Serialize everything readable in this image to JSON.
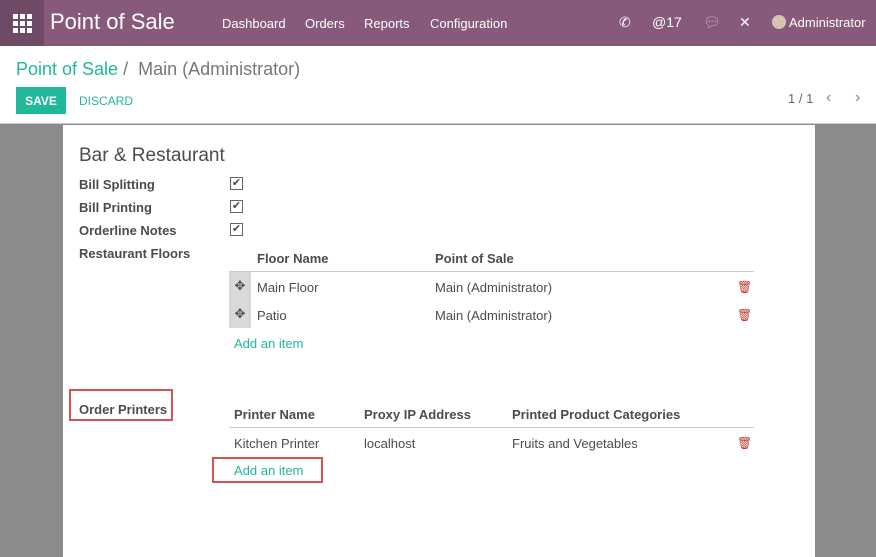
{
  "nav": {
    "brand": "Point of Sale",
    "menu": [
      "Dashboard",
      "Orders",
      "Reports",
      "Configuration"
    ],
    "mentions": "17",
    "user": "Administrator",
    "color": "#875a7b"
  },
  "cp": {
    "breadcrumb_root": "Point of Sale",
    "breadcrumb_sep": "/",
    "breadcrumb_current": "Main (Administrator)",
    "save": "SAVE",
    "discard": "DISCARD",
    "pager": "1 / 1"
  },
  "form": {
    "section": "Bar & Restaurant",
    "fields": [
      {
        "label": "Bill Splitting",
        "checked": true
      },
      {
        "label": "Bill Printing",
        "checked": true
      },
      {
        "label": "Orderline Notes",
        "checked": true
      }
    ],
    "floors_label": "Restaurant Floors",
    "floors_headers": [
      "Floor Name",
      "Point of Sale"
    ],
    "floors": [
      {
        "name": "Main Floor",
        "pos": "Main (Administrator)"
      },
      {
        "name": "Patio",
        "pos": "Main (Administrator)"
      }
    ],
    "add_item": "Add an item",
    "printers_label": "Order Printers",
    "printers_headers": [
      "Printer Name",
      "Proxy IP Address",
      "Printed Product Categories"
    ],
    "printers": [
      {
        "name": "Kitchen Printer",
        "ip": "localhost",
        "categories": "Fruits and Vegetables"
      }
    ]
  },
  "accent": "#21b799"
}
